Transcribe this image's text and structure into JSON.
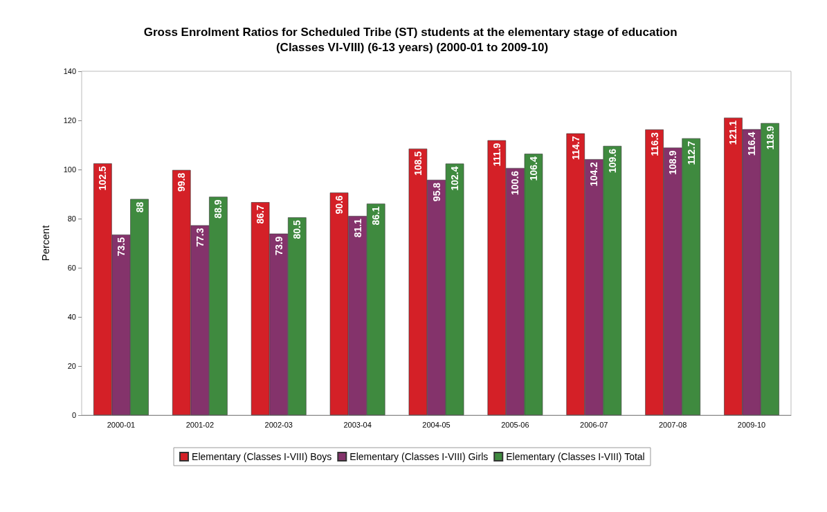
{
  "chart_data": {
    "type": "bar",
    "title": "Gross Enrolment Ratios for Scheduled Tribe (ST) students at the elementary stage of education (Classes VI-VIII) (6-13 years) (2000-01 to 2009-10)",
    "ylabel": "Percent",
    "categories": [
      "2000-01",
      "2001-02",
      "2002-03",
      "2003-04",
      "2004-05",
      "2005-06",
      "2006-07",
      "2007-08",
      "2009-10"
    ],
    "series": [
      {
        "name": "Elementary (Classes I-VIII) Boys",
        "color": "#d42027",
        "values": [
          102.5,
          99.8,
          86.7,
          90.6,
          108.5,
          111.9,
          114.7,
          116.3,
          121.1
        ]
      },
      {
        "name": "Elementary (Classes I-VIII) Girls",
        "color": "#84336b",
        "values": [
          73.5,
          77.3,
          73.9,
          81.1,
          95.8,
          100.6,
          104.2,
          108.9,
          116.4
        ]
      },
      {
        "name": "Elementary (Classes I-VIII) Total",
        "color": "#3f8a3f",
        "values": [
          88,
          88.9,
          80.5,
          86.1,
          102.4,
          106.4,
          109.6,
          112.7,
          118.9
        ]
      }
    ],
    "ylim": [
      0,
      140
    ],
    "yticks": [
      0,
      20,
      40,
      60,
      80,
      100,
      120,
      140
    ],
    "grid": false,
    "legend": "bottom",
    "data_labels": true
  }
}
